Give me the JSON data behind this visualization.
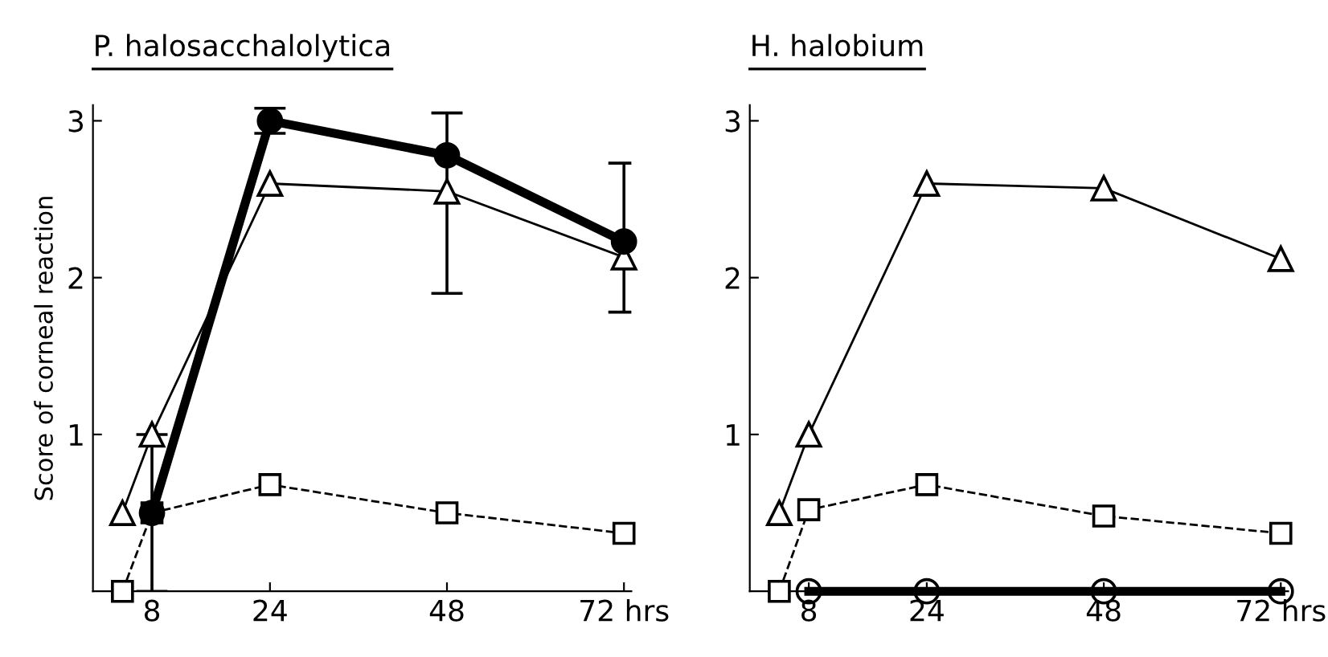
{
  "chart_data": [
    {
      "type": "line",
      "title": "P. halosacchalolytica",
      "ylabel": "Score of corneal reaction",
      "xlim": [
        0,
        73
      ],
      "ylim": [
        0,
        3.1
      ],
      "xticks": [
        8,
        24,
        48,
        {
          "value": 72,
          "label": "72 hrs"
        }
      ],
      "yticks": [
        1,
        2,
        3
      ],
      "grid": false,
      "legend": false,
      "series": [
        {
          "color": "#000000",
          "marker": "triangle",
          "line_style": "solid",
          "x": [
            4,
            8,
            24,
            48,
            72
          ],
          "values": [
            0.5,
            1.0,
            2.6,
            2.55,
            2.13
          ]
        },
        {
          "color": "#000000",
          "marker": "square",
          "line_style": "dashed",
          "x": [
            4,
            8,
            24,
            48,
            72
          ],
          "values": [
            0.0,
            0.5,
            0.68,
            0.5,
            0.37
          ]
        },
        {
          "color": "#000000",
          "marker": "circle",
          "line_style": "solid",
          "x": [
            8,
            24,
            48,
            72
          ],
          "values": [
            0.5,
            3.0,
            2.78,
            2.23
          ],
          "errors": [
            [
              0,
              1.0
            ],
            [
              2.92,
              3.08
            ],
            [
              1.9,
              3.05
            ],
            [
              1.78,
              2.73
            ]
          ]
        }
      ]
    },
    {
      "type": "line",
      "title": "H. halobium",
      "xlim": [
        0,
        73
      ],
      "ylim": [
        0,
        3.1
      ],
      "xticks": [
        8,
        24,
        48,
        {
          "value": 72,
          "label": "72 hrs"
        }
      ],
      "yticks": [
        1,
        2,
        3
      ],
      "grid": false,
      "legend": false,
      "series": [
        {
          "color": "#000000",
          "marker": "triangle",
          "line_style": "solid",
          "x": [
            4,
            8,
            24,
            48,
            72
          ],
          "values": [
            0.5,
            1.0,
            2.6,
            2.57,
            2.12
          ]
        },
        {
          "color": "#000000",
          "marker": "square",
          "line_style": "dashed",
          "x": [
            4,
            8,
            24,
            48,
            72
          ],
          "values": [
            0.0,
            0.52,
            0.68,
            0.48,
            0.37
          ]
        },
        {
          "color": "#000000",
          "marker": "circle",
          "line_style": "solid",
          "x": [
            8,
            24,
            48,
            72
          ],
          "values": [
            0.0,
            0.0,
            0.0,
            0.0
          ]
        }
      ]
    }
  ]
}
